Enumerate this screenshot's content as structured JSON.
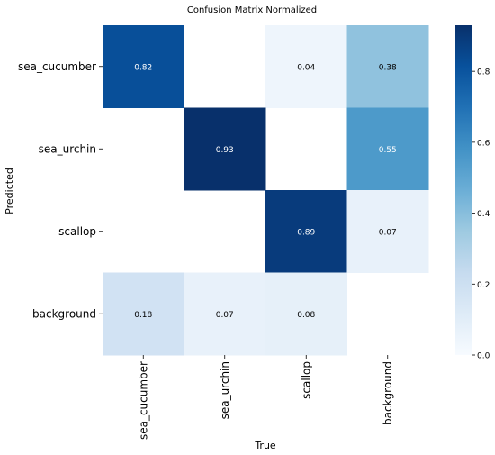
{
  "chart_data": {
    "type": "heatmap",
    "title": "Confusion Matrix Normalized",
    "xlabel": "True",
    "ylabel": "Predicted",
    "x_categories": [
      "sea_cucumber",
      "sea_urchin",
      "scallop",
      "background"
    ],
    "y_categories": [
      "sea_cucumber",
      "sea_urchin",
      "scallop",
      "background"
    ],
    "values": [
      [
        0.82,
        null,
        0.04,
        0.38
      ],
      [
        null,
        0.93,
        null,
        0.55
      ],
      [
        null,
        null,
        0.89,
        0.07
      ],
      [
        0.18,
        0.07,
        0.08,
        null
      ]
    ],
    "colorbar": {
      "min": 0.0,
      "max": 0.93,
      "ticks": [
        "0.0",
        "0.2",
        "0.4",
        "0.6",
        "0.8"
      ],
      "tick_values": [
        0,
        0.2,
        0.4,
        0.6,
        0.8
      ]
    },
    "colormap": "Blues",
    "cell_labels": [
      [
        "0.82",
        "",
        "0.04",
        "0.38"
      ],
      [
        "",
        "0.93",
        "",
        "0.55"
      ],
      [
        "",
        "",
        "0.89",
        "0.07"
      ],
      [
        "0.18",
        "0.07",
        "0.08",
        ""
      ]
    ]
  }
}
